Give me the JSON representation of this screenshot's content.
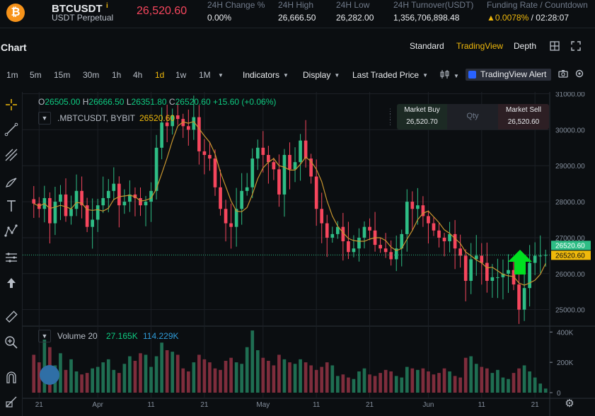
{
  "header": {
    "coin_glyph": "₿",
    "symbol": "BTCUSDT",
    "info_glyph": "i",
    "contract_type": "USDT Perpetual",
    "last_price": "26,520.60",
    "stats": [
      {
        "label": "24H Change %",
        "value": "0.00%"
      },
      {
        "label": "24H High",
        "value": "26,666.50"
      },
      {
        "label": "24H Low",
        "value": "26,282.00"
      },
      {
        "label": "24H Turnover(USDT)",
        "value": "1,356,706,898.48"
      }
    ],
    "funding_label": "Funding Rate / Countdown",
    "funding_rate": "0.0078%",
    "funding_sep": " / ",
    "countdown": "02:28:07"
  },
  "chart_header": {
    "title": "Chart",
    "views": [
      "Standard",
      "TradingView",
      "Depth"
    ],
    "active_view": "TradingView"
  },
  "toolbar": {
    "timeframes": [
      "1m",
      "5m",
      "15m",
      "30m",
      "1h",
      "4h",
      "1d",
      "1w",
      "1M"
    ],
    "active_timeframe": "1d",
    "indicators_label": "Indicators",
    "display_label": "Display",
    "price_type_label": "Last Traded Price",
    "alert_label": "TradingView Alert"
  },
  "ohlc": {
    "o_label": "O",
    "o": "26505.00",
    "h_label": "H",
    "h": "26666.50",
    "l_label": "L",
    "l": "26351.80",
    "c_label": "C",
    "c": "26520.60",
    "change": "+15.60 (+0.06%)"
  },
  "legend": {
    "symbol": ".MBTCUSDT, BYBIT",
    "price": "26520.60"
  },
  "trade_widget": {
    "buy_label": "Market Buy",
    "buy_price": "26,520.70",
    "qty_placeholder": "Qty",
    "sell_label": "Market Sell",
    "sell_price": "26,520.60"
  },
  "volume_legend": {
    "name": "Volume 20",
    "value": "27.165K",
    "ma": "114.229K"
  },
  "chart_data": [
    {
      "type": "candlestick",
      "title": "",
      "y_axis_ticks": [
        "31000.00",
        "30000.00",
        "29000.00",
        "28000.00",
        "27000.00",
        "26000.00",
        "25000.00"
      ],
      "ylim": [
        24600,
        31050
      ],
      "x_axis_ticks": [
        "21",
        "Apr",
        "11",
        "21",
        "May",
        "11",
        "21",
        "Jun",
        "11",
        "21"
      ],
      "price_labels": [
        {
          "value": "26520.60",
          "color": "#2ebd85"
        },
        {
          "value": "26520.60",
          "color": "#f0b90b"
        }
      ],
      "grid": true,
      "up_color": "#2ebd85",
      "down_color": "#f6465d",
      "ma_color": "#c9962f",
      "close": [
        27950,
        27800,
        28100,
        27400,
        28000,
        28200,
        27600,
        27800,
        28300,
        27900,
        27300,
        27500,
        27900,
        28100,
        28300,
        28500,
        27900,
        28000,
        28200,
        28100,
        27900,
        28000,
        28300,
        29500,
        30200,
        30100,
        30400,
        30300,
        30100,
        30000,
        30350,
        29400,
        29300,
        29200,
        28400,
        27800,
        27400,
        27300,
        27800,
        28300,
        28400,
        29200,
        29500,
        29300,
        29100,
        28900,
        28200,
        29300,
        28900,
        29100,
        29700,
        29200,
        28700,
        27800,
        27400,
        27000,
        27100,
        27300,
        26900,
        26600,
        26700,
        27000,
        27300,
        27200,
        26800,
        26700,
        26600,
        26400,
        26700,
        27100,
        28000,
        27800,
        27900,
        27600,
        27400,
        27200,
        27000,
        26900,
        27100,
        26700,
        26500,
        25800,
        26400,
        26500,
        26300,
        25800,
        25900,
        25900,
        26000,
        26100,
        25700,
        25000,
        25600,
        26300,
        26500,
        26500,
        26520
      ],
      "volume_k": [
        250,
        200,
        350,
        300,
        180,
        260,
        150,
        220,
        140,
        120,
        130,
        160,
        170,
        200,
        220,
        150,
        130,
        190,
        240,
        210,
        260,
        250,
        170,
        240,
        330,
        280,
        270,
        250,
        160,
        140,
        200,
        250,
        220,
        200,
        160,
        150,
        210,
        230,
        200,
        190,
        300,
        410,
        280,
        230,
        210,
        180,
        250,
        220,
        200,
        190,
        220,
        200,
        180,
        150,
        170,
        200,
        180,
        110,
        120,
        100,
        90,
        140,
        160,
        120,
        110,
        130,
        150,
        140,
        110,
        100,
        170,
        160,
        150,
        160,
        140,
        120,
        130,
        160,
        140,
        110,
        100,
        230,
        240,
        190,
        170,
        160,
        130,
        150,
        100,
        90,
        130,
        160,
        180,
        140,
        100,
        60,
        27
      ]
    }
  ]
}
